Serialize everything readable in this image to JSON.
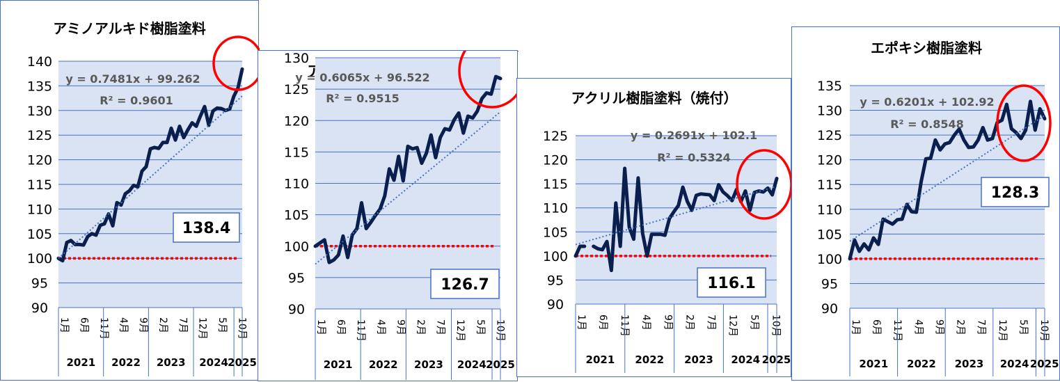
{
  "colors": {
    "plot_bg": "#dae3f3",
    "grid": "#4472c4",
    "line": "#0b1f4f",
    "trend": "#4472c4",
    "baseline": "#ff0000",
    "circle": "#ff0000"
  },
  "months": [
    "1月",
    "6月",
    "11月",
    "4月",
    "9月",
    "2月",
    "7月",
    "12月",
    "5月",
    "10月"
  ],
  "years": [
    "2021",
    "2022",
    "2023",
    "2024",
    "2025"
  ],
  "chart_data": [
    {
      "type": "line",
      "title": "アミノアルキド樹脂塗料",
      "yticks": [
        "140",
        "135",
        "130",
        "125",
        "120",
        "115",
        "110",
        "105",
        "100",
        "95",
        "90"
      ],
      "ylim": [
        90,
        140
      ],
      "baseline": 100,
      "trend_equation": "y = 0.7481x + 99.262",
      "r_squared": "R² = 0.9601",
      "trend": {
        "slope": 0.7481,
        "intercept": 99.262
      },
      "latest_value": "138.4",
      "series": [
        {
          "values": [
            100,
            99.5,
            103.2,
            103.6,
            102.8,
            102.8,
            102.7,
            104.4,
            105.0,
            104.7,
            106.7,
            107.0,
            109.0,
            106.6,
            111.3,
            110.8,
            113.1,
            113.7,
            114.8,
            114.5,
            117.7,
            118.6,
            122.2,
            122.5,
            122.3,
            123.5,
            123.5,
            126.4,
            124.0,
            126.8,
            124.5,
            126.1,
            127.5,
            126.8,
            128.9,
            130.8,
            127.0,
            129.9,
            130.5,
            130.4,
            130.0,
            130.3,
            132.9,
            134.6,
            138.4
          ]
        }
      ]
    },
    {
      "type": "line",
      "title": "アクリル樹脂塗料（常温）",
      "yticks": [
        "130",
        "125",
        "120",
        "115",
        "110",
        "105",
        "100",
        "95",
        "90"
      ],
      "ylim": [
        90,
        130
      ],
      "baseline": 100,
      "trend_equation": "y = 0.6065x + 96.522",
      "r_squared": "R² = 0.9515",
      "trend": {
        "slope": 0.6065,
        "intercept": 96.522
      },
      "latest_value": "126.7",
      "series": [
        {
          "values": [
            100,
            100.5,
            101.0,
            97.4,
            97.8,
            98.6,
            101.6,
            98.2,
            101.8,
            102.8,
            106.9,
            102.8,
            103.8,
            104.9,
            105.9,
            108.0,
            112.3,
            110.5,
            114.3,
            110.4,
            115.9,
            115.5,
            115.7,
            113.2,
            114.8,
            117.7,
            114.1,
            117.3,
            118.7,
            118.5,
            120.1,
            121.2,
            118.0,
            120.7,
            120.4,
            121.5,
            123.5,
            124.4,
            124.2,
            127.0,
            126.7
          ]
        }
      ]
    },
    {
      "type": "line",
      "title": "アクリル樹脂塗料（焼付）",
      "yticks": [
        "125",
        "120",
        "115",
        "110",
        "105",
        "100",
        "95",
        "90"
      ],
      "ylim": [
        90,
        125
      ],
      "baseline": 100,
      "trend_equation": "y = 0.2691x + 102.1",
      "r_squared": "R² = 0.5324",
      "trend": {
        "slope": 0.2691,
        "intercept": 102.1
      },
      "latest_value": "116.1",
      "series": [
        {
          "values": [
            100,
            102,
            102,
            null,
            102,
            101.5,
            101.3,
            103,
            97,
            111,
            102,
            118.2,
            106,
            103.5,
            116.2,
            104.7,
            100,
            104.5,
            104.5,
            104.5,
            104.3,
            107.8,
            109.2,
            110.5,
            114.3,
            111.3,
            109.5,
            112.6,
            112.9,
            112.8,
            112.7,
            111.5,
            114.8,
            113.3,
            112.5,
            111.5,
            113.8,
            111.3,
            113.5,
            109.5,
            113.2,
            113.5,
            113.3,
            114.1,
            112.7,
            116.1
          ]
        }
      ]
    },
    {
      "type": "line",
      "title": "エポキシ樹脂塗料",
      "yticks": [
        "135",
        "130",
        "125",
        "120",
        "115",
        "110",
        "105",
        "100",
        "95",
        "90"
      ],
      "ylim": [
        90,
        135
      ],
      "baseline": 100,
      "trend_equation": "y = 0.6201x + 102.92",
      "r_squared": "R² = 0.8548",
      "trend": {
        "slope": 0.6201,
        "intercept": 102.92
      },
      "latest_value": "128.3",
      "series": [
        {
          "values": [
            100,
            103.8,
            101.5,
            103.0,
            101.8,
            104.2,
            102.9,
            108.0,
            107.5,
            107.0,
            107.9,
            108.0,
            111.0,
            109.5,
            109.4,
            115.5,
            120.2,
            120.3,
            124.0,
            122.0,
            123.2,
            123.5,
            125.0,
            126.2,
            124.0,
            122.5,
            122.6,
            124.0,
            126.5,
            124.0,
            124.3,
            127.5,
            128.0,
            131.2,
            126.3,
            125.5,
            124.3,
            126.0,
            131.8,
            126.0,
            130.3,
            128.3
          ]
        }
      ]
    }
  ]
}
